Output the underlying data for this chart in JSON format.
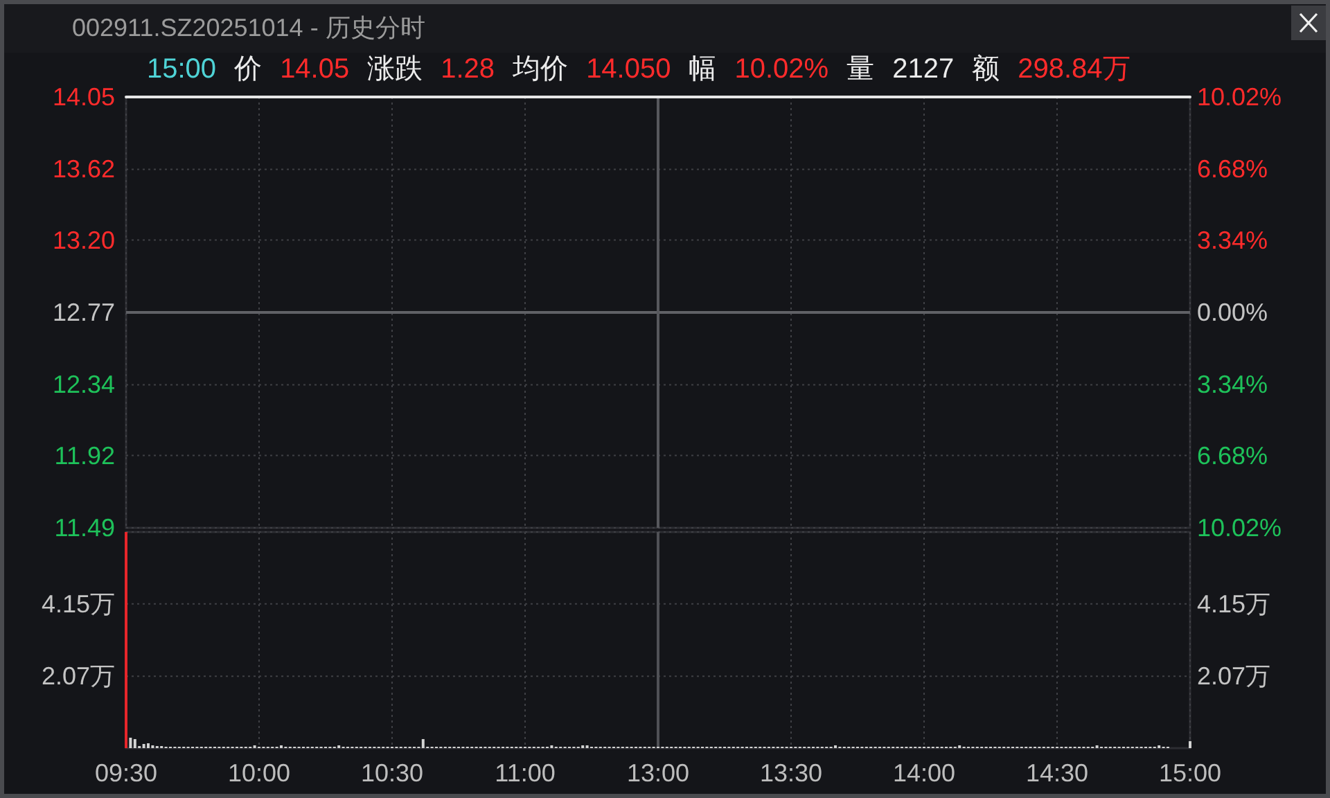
{
  "chart_data": [
    {
      "type": "line",
      "title": "002911.SZ20251014 - 历史分时",
      "annotations": [
        "15:00",
        "价",
        "14.05",
        "涨跌",
        "1.28",
        "均价",
        "14.050",
        "幅",
        "10.02%",
        "量",
        "2127",
        "额",
        "298.84万"
      ],
      "categories": [
        "09:30",
        null,
        null,
        null,
        null,
        null,
        null,
        null,
        null,
        null,
        null,
        null,
        null,
        null,
        null,
        null,
        null,
        null,
        null,
        null,
        null,
        null,
        null,
        null,
        null,
        null,
        null,
        null,
        null,
        null,
        "10:00",
        null,
        null,
        null,
        null,
        null,
        null,
        null,
        null,
        null,
        null,
        null,
        null,
        null,
        null,
        null,
        null,
        null,
        null,
        null,
        null,
        null,
        null,
        null,
        null,
        null,
        null,
        null,
        null,
        null,
        "10:30",
        null,
        null,
        null,
        null,
        null,
        null,
        null,
        null,
        null,
        null,
        null,
        null,
        null,
        null,
        null,
        null,
        null,
        null,
        null,
        null,
        null,
        null,
        null,
        null,
        null,
        null,
        null,
        null,
        null,
        "11:00",
        null,
        null,
        null,
        null,
        null,
        null,
        null,
        null,
        null,
        null,
        null,
        null,
        null,
        null,
        null,
        null,
        null,
        null,
        null,
        null,
        null,
        null,
        null,
        null,
        null,
        null,
        null,
        null,
        null,
        "13:00",
        null,
        null,
        null,
        null,
        null,
        null,
        null,
        null,
        null,
        null,
        null,
        null,
        null,
        null,
        null,
        null,
        null,
        null,
        null,
        null,
        null,
        null,
        null,
        null,
        null,
        null,
        null,
        null,
        null,
        "13:30",
        null,
        null,
        null,
        null,
        null,
        null,
        null,
        null,
        null,
        null,
        null,
        null,
        null,
        null,
        null,
        null,
        null,
        null,
        null,
        null,
        null,
        null,
        null,
        null,
        null,
        null,
        null,
        null,
        null,
        "14:00",
        null,
        null,
        null,
        null,
        null,
        null,
        null,
        null,
        null,
        null,
        null,
        null,
        null,
        null,
        null,
        null,
        null,
        null,
        null,
        null,
        null,
        null,
        null,
        null,
        null,
        null,
        null,
        null,
        null,
        "14:30",
        null,
        null,
        null,
        null,
        null,
        null,
        null,
        null,
        null,
        null,
        null,
        null,
        null,
        null,
        null,
        null,
        null,
        null,
        null,
        null,
        null,
        null,
        null,
        null,
        null,
        null,
        null,
        null,
        null,
        "15:00"
      ],
      "values": [
        14.05,
        14.05,
        14.05,
        14.05,
        14.05,
        14.05,
        14.05,
        14.05,
        14.05,
        14.05,
        14.05,
        14.05,
        14.05,
        14.05,
        14.05,
        14.05,
        14.05,
        14.05,
        14.05,
        14.05,
        14.05,
        14.05,
        14.05,
        14.05,
        14.05,
        14.05,
        14.05,
        14.05,
        14.05,
        14.05,
        14.05,
        14.05,
        14.05,
        14.05,
        14.05,
        14.05,
        14.05,
        14.05,
        14.05,
        14.05,
        14.05,
        14.05,
        14.05,
        14.05,
        14.05,
        14.05,
        14.05,
        14.05,
        14.05,
        14.05,
        14.05,
        14.05,
        14.05,
        14.05,
        14.05,
        14.05,
        14.05,
        14.05,
        14.05,
        14.05,
        14.05,
        14.05,
        14.05,
        14.05,
        14.05,
        14.05,
        14.05,
        14.05,
        14.05,
        14.05,
        14.05,
        14.05,
        14.05,
        14.05,
        14.05,
        14.05,
        14.05,
        14.05,
        14.05,
        14.05,
        14.05,
        14.05,
        14.05,
        14.05,
        14.05,
        14.05,
        14.05,
        14.05,
        14.05,
        14.05,
        14.05,
        14.05,
        14.05,
        14.05,
        14.05,
        14.05,
        14.05,
        14.05,
        14.05,
        14.05,
        14.05,
        14.05,
        14.05,
        14.05,
        14.05,
        14.05,
        14.05,
        14.05,
        14.05,
        14.05,
        14.05,
        14.05,
        14.05,
        14.05,
        14.05,
        14.05,
        14.05,
        14.05,
        14.05,
        14.05,
        14.05,
        14.05,
        14.05,
        14.05,
        14.05,
        14.05,
        14.05,
        14.05,
        14.05,
        14.05,
        14.05,
        14.05,
        14.05,
        14.05,
        14.05,
        14.05,
        14.05,
        14.05,
        14.05,
        14.05,
        14.05,
        14.05,
        14.05,
        14.05,
        14.05,
        14.05,
        14.05,
        14.05,
        14.05,
        14.05,
        14.05,
        14.05,
        14.05,
        14.05,
        14.05,
        14.05,
        14.05,
        14.05,
        14.05,
        14.05,
        14.05,
        14.05,
        14.05,
        14.05,
        14.05,
        14.05,
        14.05,
        14.05,
        14.05,
        14.05,
        14.05,
        14.05,
        14.05,
        14.05,
        14.05,
        14.05,
        14.05,
        14.05,
        14.05,
        14.05,
        14.05,
        14.05,
        14.05,
        14.05,
        14.05,
        14.05,
        14.05,
        14.05,
        14.05,
        14.05,
        14.05,
        14.05,
        14.05,
        14.05,
        14.05,
        14.05,
        14.05,
        14.05,
        14.05,
        14.05,
        14.05,
        14.05,
        14.05,
        14.05,
        14.05,
        14.05,
        14.05,
        14.05,
        14.05,
        14.05,
        14.05,
        14.05,
        14.05,
        14.05,
        14.05,
        14.05,
        14.05,
        14.05,
        14.05,
        14.05,
        14.05,
        14.05,
        14.05,
        14.05,
        14.05,
        14.05,
        14.05,
        14.05,
        14.05,
        14.05,
        14.05,
        14.05,
        14.05,
        14.05,
        14.05,
        14.05,
        14.05,
        14.05,
        14.05,
        14.05,
        14.05
      ],
      "color": "#e6e6e6",
      "ylim": [
        11.49,
        14.05
      ],
      "yticks": [
        11.49,
        11.92,
        12.34,
        12.77,
        {
          "value": 13.2,
          "label": "13.20"
        },
        13.62,
        14.05
      ],
      "y2lim": [
        -10.02,
        10.02
      ],
      "y2ticks": [
        {
          "value": -10.02,
          "label": "10.02%"
        },
        {
          "value": -6.68,
          "label": "6.68%"
        },
        {
          "value": -3.34,
          "label": "3.34%"
        },
        {
          "value": 0,
          "label": "0.00%"
        },
        {
          "value": 3.34,
          "label": "3.34%"
        },
        {
          "value": 6.68,
          "label": "6.68%"
        },
        {
          "value": 10.02,
          "label": "10.02%"
        }
      ],
      "ref_lines": [
        {
          "axis": "y",
          "value": 12.77,
          "color": "#606166"
        },
        {
          "axis": "x",
          "value": "13:00",
          "color": "#57585d"
        }
      ],
      "grid": true,
      "tick_labels": "y"
    },
    {
      "type": "bar",
      "categories": [
        "09:30",
        null,
        null,
        null,
        null,
        null,
        null,
        null,
        null,
        null,
        null,
        null,
        null,
        null,
        null,
        null,
        null,
        null,
        null,
        null,
        null,
        null,
        null,
        null,
        null,
        null,
        null,
        null,
        null,
        null,
        "10:00",
        null,
        null,
        null,
        null,
        null,
        null,
        null,
        null,
        null,
        null,
        null,
        null,
        null,
        null,
        null,
        null,
        null,
        null,
        null,
        null,
        null,
        null,
        null,
        null,
        null,
        null,
        null,
        null,
        null,
        "10:30",
        null,
        null,
        null,
        null,
        null,
        null,
        null,
        null,
        null,
        null,
        null,
        null,
        null,
        null,
        null,
        null,
        null,
        null,
        null,
        null,
        null,
        null,
        null,
        null,
        null,
        null,
        null,
        null,
        null,
        "11:00",
        null,
        null,
        null,
        null,
        null,
        null,
        null,
        null,
        null,
        null,
        null,
        null,
        null,
        null,
        null,
        null,
        null,
        null,
        null,
        null,
        null,
        null,
        null,
        null,
        null,
        null,
        null,
        null,
        null,
        "13:00",
        null,
        null,
        null,
        null,
        null,
        null,
        null,
        null,
        null,
        null,
        null,
        null,
        null,
        null,
        null,
        null,
        null,
        null,
        null,
        null,
        null,
        null,
        null,
        null,
        null,
        null,
        null,
        null,
        null,
        "13:30",
        null,
        null,
        null,
        null,
        null,
        null,
        null,
        null,
        null,
        null,
        null,
        null,
        null,
        null,
        null,
        null,
        null,
        null,
        null,
        null,
        null,
        null,
        null,
        null,
        null,
        null,
        null,
        null,
        null,
        "14:00",
        null,
        null,
        null,
        null,
        null,
        null,
        null,
        null,
        null,
        null,
        null,
        null,
        null,
        null,
        null,
        null,
        null,
        null,
        null,
        null,
        null,
        null,
        null,
        null,
        null,
        null,
        null,
        null,
        null,
        "14:30",
        null,
        null,
        null,
        null,
        null,
        null,
        null,
        null,
        null,
        null,
        null,
        null,
        null,
        null,
        null,
        null,
        null,
        null,
        null,
        null,
        null,
        null,
        null,
        null,
        null,
        null,
        null,
        null,
        null,
        "15:00"
      ],
      "series": [
        {
          "color": "#e8262b",
          "values": [
            6.22,
            null,
            null,
            null,
            null,
            null,
            null,
            null,
            null,
            null,
            null,
            null,
            null,
            null,
            null,
            null,
            null,
            null,
            null,
            null,
            null,
            null,
            null,
            null,
            null,
            null,
            null,
            null,
            null,
            null,
            null,
            null,
            null,
            null,
            null,
            null,
            null,
            null,
            null,
            null,
            null,
            null,
            null,
            null,
            null,
            null,
            null,
            null,
            null,
            null,
            null,
            null,
            null,
            null,
            null,
            null,
            null,
            null,
            null,
            null,
            null,
            null,
            null,
            null,
            null,
            null,
            null,
            null,
            null,
            null,
            null,
            null,
            null,
            null,
            null,
            null,
            null,
            null,
            null,
            null,
            null,
            null,
            null,
            null,
            null,
            null,
            null,
            null,
            null,
            null,
            null,
            null,
            null,
            null,
            null,
            null,
            null,
            null,
            null,
            null,
            null,
            null,
            null,
            null,
            null,
            null,
            null,
            null,
            null,
            null,
            null,
            null,
            null,
            null,
            null,
            null,
            null,
            null,
            null,
            null,
            null,
            null,
            null,
            null,
            null,
            null,
            null,
            null,
            null,
            null,
            null,
            null,
            null,
            null,
            null,
            null,
            null,
            null,
            null,
            null,
            null,
            null,
            null,
            null,
            null,
            null,
            null,
            null,
            null,
            null,
            null,
            null,
            null,
            null,
            null,
            null,
            null,
            null,
            null,
            null,
            null,
            null,
            null,
            null,
            null,
            null,
            null,
            null,
            null,
            null,
            null,
            null,
            null,
            null,
            null,
            null,
            null,
            null,
            null,
            null,
            null,
            null,
            null,
            null,
            null,
            null,
            null,
            null,
            null,
            null,
            null,
            null,
            null,
            null,
            null,
            null,
            null,
            null,
            null,
            null,
            null,
            null,
            null,
            null,
            null,
            null,
            null,
            null,
            null,
            null,
            null,
            null,
            null,
            null,
            null,
            null,
            null,
            null,
            null,
            null,
            null,
            null,
            null,
            null,
            null,
            null,
            null,
            null,
            null,
            null,
            null,
            null,
            null,
            null,
            null,
            null,
            null,
            null,
            null,
            null,
            null
          ]
        },
        {
          "color": "#d4d4d4",
          "values": [
            null,
            0.3,
            0.26,
            0.06,
            0.12,
            0.14,
            0.08,
            0.06,
            0.06,
            0.04,
            0.04,
            0.04,
            0.04,
            0.04,
            0.04,
            0.04,
            0.04,
            0.04,
            0.04,
            0.04,
            0.04,
            0.04,
            0.04,
            0.04,
            0.04,
            0.04,
            0.04,
            0.04,
            0.04,
            0.08,
            0.04,
            0.04,
            0.04,
            0.04,
            0.04,
            0.08,
            0.04,
            0.04,
            0.04,
            0.04,
            0.04,
            0.04,
            0.04,
            0.04,
            0.04,
            0.04,
            0.04,
            0.04,
            0.08,
            0.04,
            0.04,
            0.04,
            0.04,
            0.04,
            0.04,
            0.04,
            0.04,
            0.04,
            0.04,
            0.04,
            0.04,
            0.04,
            0.04,
            0.04,
            0.04,
            0.04,
            0.04,
            0.26,
            0.04,
            0.04,
            0.04,
            0.04,
            0.04,
            0.04,
            0.04,
            0.04,
            0.04,
            0.04,
            0.04,
            0.04,
            0.04,
            0.04,
            0.04,
            0.04,
            0.04,
            0.04,
            0.04,
            0.04,
            0.04,
            0.04,
            0.04,
            0.04,
            0.04,
            0.04,
            0.04,
            0.04,
            0.08,
            0.04,
            0.04,
            0.04,
            0.04,
            0.04,
            0.04,
            0.08,
            0.08,
            0.04,
            0.04,
            0.04,
            0.04,
            0.04,
            0.04,
            0.04,
            0.04,
            0.04,
            0.04,
            0.04,
            0.04,
            0.04,
            0.04,
            0.04,
            0.04,
            0.04,
            0.04,
            0.04,
            0.04,
            0.04,
            0.04,
            0.04,
            0.04,
            0.04,
            0.04,
            0.04,
            0.04,
            0.04,
            0.04,
            0.04,
            0.04,
            0.04,
            0.04,
            0.04,
            0.04,
            0.04,
            0.04,
            0.04,
            0.04,
            0.04,
            0.04,
            0.04,
            0.04,
            0.04,
            0.04,
            0.04,
            0.04,
            0.04,
            0.04,
            0.04,
            0.04,
            0.04,
            0.04,
            0.04,
            0.08,
            0.04,
            0.04,
            0.04,
            0.04,
            0.04,
            0.04,
            0.04,
            0.04,
            0.04,
            0.04,
            0.04,
            0.04,
            0.04,
            0.04,
            0.04,
            0.04,
            0.04,
            0.04,
            0.04,
            0.04,
            0.04,
            0.04,
            0.04,
            0.04,
            0.04,
            0.04,
            0.04,
            0.08,
            0.04,
            0.04,
            0.04,
            0.04,
            0.04,
            0.04,
            0.04,
            0.04,
            0.04,
            0.04,
            0.04,
            0.04,
            0.04,
            0.04,
            0.04,
            0.04,
            0.04,
            0.04,
            0.04,
            0.04,
            0.04,
            0.04,
            0.04,
            0.04,
            0.04,
            0.04,
            0.04,
            0.04,
            0.04,
            0.04,
            0.08,
            0.04,
            0.04,
            0.04,
            0.04,
            0.04,
            0.04,
            0.04,
            0.04,
            0.04,
            0.04,
            0.04,
            0.04,
            0.04,
            0.08,
            0.04,
            0.04,
            null,
            null,
            null,
            null,
            0.2
          ]
        }
      ],
      "ylim": [
        0,
        6.22
      ],
      "yticks": [
        {
          "value": 2.07,
          "label": "2.07万"
        },
        {
          "value": 4.15,
          "label": "4.15万"
        },
        {
          "value": 6.22,
          "label": null
        }
      ],
      "y2lim": [
        0,
        6.22
      ],
      "y2ticks": [
        {
          "value": 2.07,
          "label": "2.07万"
        },
        {
          "value": 4.15,
          "label": "4.15万"
        }
      ],
      "ref_lines": [
        {
          "axis": "x",
          "value": "13:00",
          "color": "#505156"
        }
      ],
      "grid": true
    }
  ]
}
